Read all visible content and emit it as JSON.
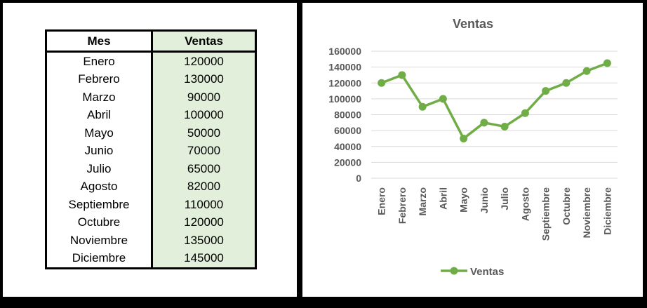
{
  "table": {
    "headers": [
      "Mes",
      "Ventas"
    ],
    "rows": [
      [
        "Enero",
        "120000"
      ],
      [
        "Febrero",
        "130000"
      ],
      [
        "Marzo",
        "90000"
      ],
      [
        "Abril",
        "100000"
      ],
      [
        "Mayo",
        "50000"
      ],
      [
        "Junio",
        "70000"
      ],
      [
        "Julio",
        "65000"
      ],
      [
        "Agosto",
        "82000"
      ],
      [
        "Septiembre",
        "110000"
      ],
      [
        "Octubre",
        "120000"
      ],
      [
        "Noviembre",
        "135000"
      ],
      [
        "Diciembre",
        "145000"
      ]
    ]
  },
  "chart_data": {
    "type": "line",
    "title": "Ventas",
    "categories": [
      "Enero",
      "Febrero",
      "Marzo",
      "Abril",
      "Mayo",
      "Junio",
      "Julio",
      "Agosto",
      "Septiembre",
      "Octubre",
      "Noviembre",
      "Diciembre"
    ],
    "series": [
      {
        "name": "Ventas",
        "values": [
          120000,
          130000,
          90000,
          100000,
          50000,
          70000,
          65000,
          82000,
          110000,
          120000,
          135000,
          145000
        ]
      }
    ],
    "yticks": [
      0,
      20000,
      40000,
      60000,
      80000,
      100000,
      120000,
      140000,
      160000
    ],
    "ylim": [
      0,
      160000
    ],
    "grid": true,
    "legend": "bottom",
    "line_color": "#70ad47",
    "xlabel": "",
    "ylabel": ""
  },
  "colors": {
    "series": "#70ad47",
    "grid": "#d9d9d9",
    "text": "#595959",
    "ventas_column_fill": "#e2efda"
  }
}
